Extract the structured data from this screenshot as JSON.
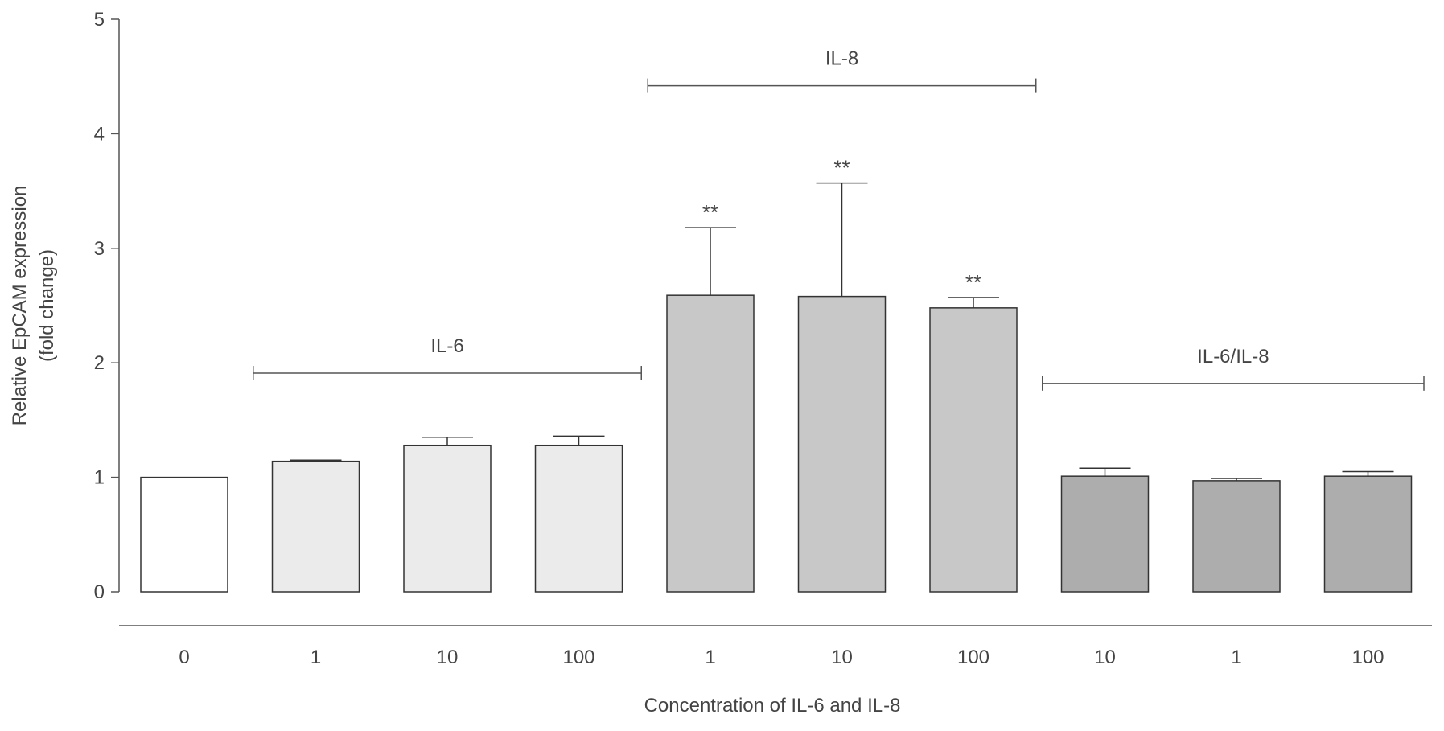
{
  "chart_data": {
    "type": "bar",
    "xlabel": "Concentration of IL-6 and IL-8",
    "ylabel_lines": [
      "Relative EpCAM expression",
      "(fold change)"
    ],
    "ylim": [
      0,
      5
    ],
    "yticks": [
      0,
      1,
      2,
      3,
      4,
      5
    ],
    "ytick_labels": [
      "0",
      "1",
      "2",
      "3",
      "4",
      "5"
    ],
    "categories": [
      "0",
      "1",
      "10",
      "100",
      "1",
      "10",
      "100",
      "10",
      "1",
      "100"
    ],
    "values": [
      1.0,
      1.14,
      1.28,
      1.28,
      2.59,
      2.58,
      2.48,
      1.01,
      0.97,
      1.01
    ],
    "error_upper": [
      1.0,
      1.15,
      1.35,
      1.36,
      3.18,
      3.57,
      2.57,
      1.08,
      0.99,
      1.05
    ],
    "significance": [
      "",
      "",
      "",
      "",
      "**",
      "**",
      "**",
      "",
      "",
      ""
    ],
    "bar_colors": [
      "#ffffff",
      "#ebebeb",
      "#ebebeb",
      "#ebebeb",
      "#c8c8c8",
      "#c8c8c8",
      "#c8c8c8",
      "#adadad",
      "#adadad",
      "#adadad"
    ],
    "groups": [
      {
        "label": "IL-6",
        "from": 1,
        "to": 3,
        "y": 1.91
      },
      {
        "label": "IL-8",
        "from": 4,
        "to": 6,
        "y": 4.42
      },
      {
        "label": "IL-6/IL-8",
        "from": 7,
        "to": 9,
        "y": 1.82
      }
    ],
    "colors": {
      "axis": "#555555",
      "bar_stroke": "#333333",
      "text": "#444444"
    }
  }
}
